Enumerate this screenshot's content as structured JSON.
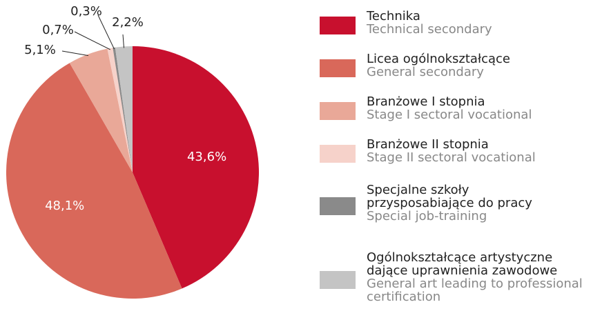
{
  "chart_data": {
    "type": "pie",
    "categories": [
      "Technika",
      "Licea ogólnokształcące",
      "Branżowe I stopnia",
      "Branżowe II stopnia",
      "Specjalne szkoły przysposabiające do pracy",
      "Ogólnokształcące artystyczne dające uprawnienia zawodowe"
    ],
    "categories_en": [
      "Technical secondary",
      "General secondary",
      "Stage I sectoral vocational",
      "Stage II sectoral vocational",
      "Special job-training",
      "General art leading to professional certification"
    ],
    "values": [
      43.6,
      48.1,
      5.1,
      0.7,
      0.3,
      2.2
    ],
    "value_labels": [
      "43,6%",
      "48,1%",
      "5,1%",
      "0,7%",
      "0,3%",
      "2,2%"
    ],
    "colors": [
      "#c8102e",
      "#d9685a",
      "#e9a898",
      "#f6d2ca",
      "#8a8a8a",
      "#c4c4c4"
    ]
  }
}
